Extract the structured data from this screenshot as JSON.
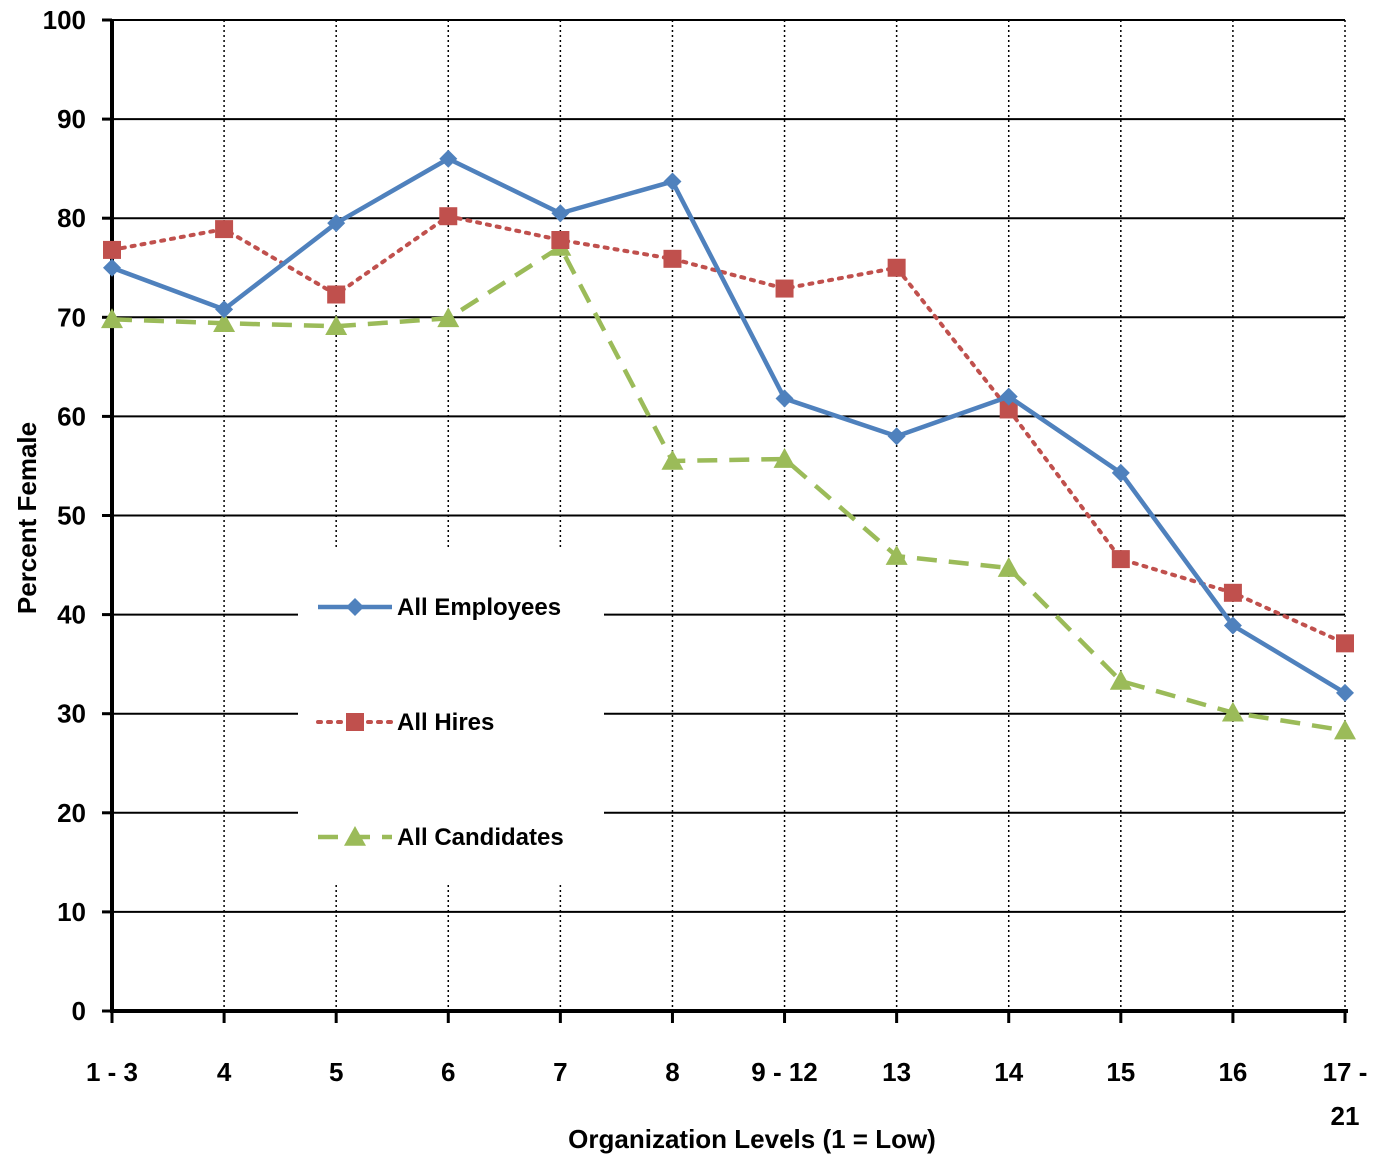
{
  "chart_data": {
    "type": "line",
    "xlabel": "Organization Levels (1 = Low)",
    "ylabel": "Percent Female",
    "ylim": [
      0,
      100
    ],
    "yticks": [
      0,
      10,
      20,
      30,
      40,
      50,
      60,
      70,
      80,
      90,
      100
    ],
    "categories": [
      "1 - 3",
      "4",
      "5",
      "6",
      "7",
      "8",
      "9 - 12",
      "13",
      "14",
      "15",
      "16",
      "17 - 21"
    ],
    "category_display": [
      [
        "1 - 3"
      ],
      [
        "4"
      ],
      [
        "5"
      ],
      [
        "6"
      ],
      [
        "7"
      ],
      [
        "8"
      ],
      [
        "9 - 12"
      ],
      [
        "13"
      ],
      [
        "14"
      ],
      [
        "15"
      ],
      [
        "16"
      ],
      [
        "17 -",
        "21"
      ]
    ],
    "grid": {
      "horizontal": "solid",
      "vertical": "dotted"
    },
    "legend_position": "center-left",
    "series": [
      {
        "name": "All Employees",
        "color": "#4f81bd",
        "marker": "diamond",
        "line_style": "solid",
        "values": [
          75,
          70.8,
          79.5,
          86,
          80.5,
          83.7,
          61.8,
          58,
          62,
          54.3,
          38.9,
          32.1
        ]
      },
      {
        "name": "All Hires",
        "color": "#c0504d",
        "marker": "square",
        "line_style": "dotted",
        "values": [
          76.8,
          78.9,
          72.3,
          80.2,
          77.8,
          75.9,
          72.9,
          75,
          60.7,
          45.6,
          42.2,
          37.1
        ]
      },
      {
        "name": "All Candidates",
        "color": "#9bbb59",
        "marker": "triangle",
        "line_style": "dashed",
        "values": [
          69.8,
          69.4,
          69.1,
          69.9,
          77.1,
          55.5,
          55.7,
          45.9,
          44.7,
          33.3,
          30.1,
          28.3
        ]
      }
    ]
  }
}
